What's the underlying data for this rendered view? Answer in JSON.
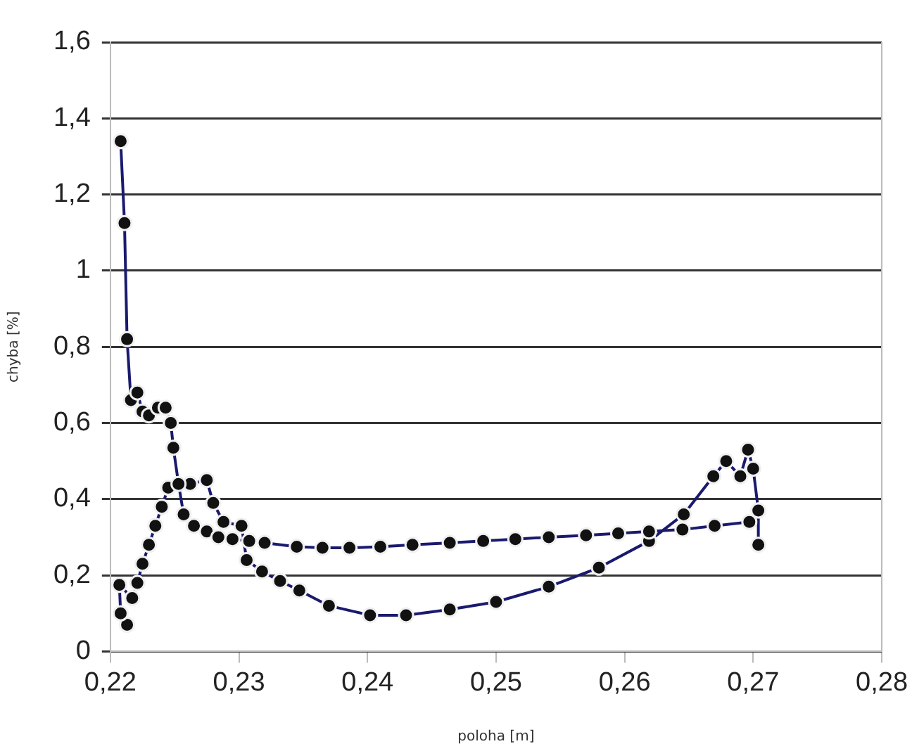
{
  "chart_data": {
    "type": "line",
    "xlabel": "poloha [m]",
    "ylabel": "chyba [%]",
    "xlim": [
      0.22,
      0.28
    ],
    "xticks": [
      {
        "value": 0.22,
        "label": "0,22"
      },
      {
        "value": 0.23,
        "label": "0,23"
      },
      {
        "value": 0.24,
        "label": "0,24"
      },
      {
        "value": 0.25,
        "label": "0,25"
      },
      {
        "value": 0.26,
        "label": "0,26"
      },
      {
        "value": 0.27,
        "label": "0,27"
      },
      {
        "value": 0.28,
        "label": "0,28"
      }
    ],
    "ylim": [
      0,
      1.6
    ],
    "yticks": [
      0,
      {
        "value": 0.2,
        "label": "0,2"
      },
      {
        "value": 0.4,
        "label": "0,4"
      },
      {
        "value": 0.6,
        "label": "0,6"
      },
      {
        "value": 0.8,
        "label": "0,8"
      },
      1,
      {
        "value": 1.2,
        "label": "1,2"
      },
      {
        "value": 1.4,
        "label": "1,4"
      },
      {
        "value": 1.6,
        "label": "1,6"
      }
    ],
    "grid": "y",
    "legend": false,
    "marker": "circle",
    "line_style": "solid",
    "series": [
      {
        "color": "#1a1a6e",
        "x": [
          0.2208,
          0.2211,
          0.2213,
          0.2216,
          0.2221,
          0.2225,
          0.223,
          0.2237,
          0.2243,
          0.2247,
          0.2249,
          0.2253,
          0.2257,
          0.2265,
          0.2275,
          0.2284,
          0.2295,
          0.2308,
          0.232,
          0.2345,
          0.2365,
          0.2386,
          0.241,
          0.2435,
          0.2464,
          0.249,
          0.2515,
          0.2541,
          0.257,
          0.2595,
          0.2619,
          0.2645,
          0.267,
          0.2697,
          0.2704,
          0.2704
        ],
        "values": [
          1.34,
          1.125,
          0.82,
          0.66,
          0.68,
          0.63,
          0.62,
          0.64,
          0.64,
          0.6,
          0.535,
          0.44,
          0.36,
          0.33,
          0.315,
          0.3,
          0.295,
          0.29,
          0.285,
          0.275,
          0.272,
          0.272,
          0.275,
          0.28,
          0.285,
          0.29,
          0.295,
          0.3,
          0.305,
          0.31,
          0.315,
          0.32,
          0.33,
          0.34,
          0.37,
          0.28
        ]
      },
      {
        "color": "#1a1a6e",
        "x": [
          0.2213,
          0.2208,
          0.2207,
          0.2217,
          0.2221,
          0.2225,
          0.223,
          0.2235,
          0.224,
          0.2245,
          0.2262,
          0.2275,
          0.228,
          0.2288,
          0.2302,
          0.2306,
          0.2318,
          0.2332,
          0.2347,
          0.237,
          0.2402,
          0.243,
          0.2464,
          0.25,
          0.2541,
          0.258,
          0.2619,
          0.2646,
          0.2669,
          0.2679,
          0.269,
          0.2696,
          0.27,
          0.2704
        ],
        "values": [
          0.07,
          0.1,
          0.175,
          0.14,
          0.18,
          0.23,
          0.28,
          0.33,
          0.38,
          0.43,
          0.44,
          0.45,
          0.39,
          0.34,
          0.33,
          0.24,
          0.21,
          0.185,
          0.16,
          0.12,
          0.095,
          0.095,
          0.11,
          0.13,
          0.17,
          0.22,
          0.29,
          0.36,
          0.46,
          0.5,
          0.46,
          0.53,
          0.48,
          0.37
        ]
      }
    ]
  }
}
